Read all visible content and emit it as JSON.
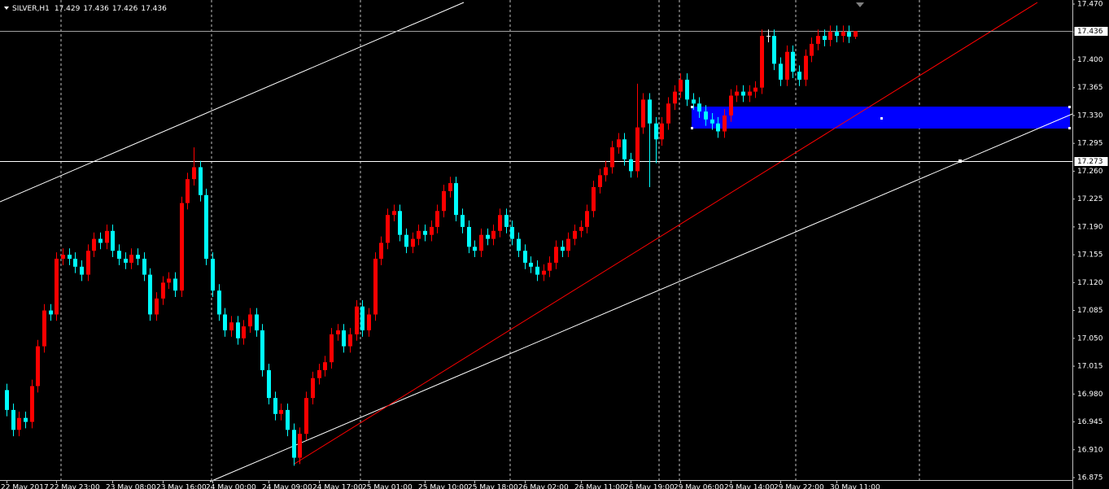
{
  "chart_data": {
    "type": "candlestick",
    "symbol": "SILVER,H1",
    "categories": [
      "22 May 2017",
      null,
      null,
      null,
      null,
      null,
      null,
      null,
      "22 May 23:00",
      null,
      null,
      null,
      null,
      null,
      null,
      null,
      null,
      "23 May 08:00",
      null,
      null,
      null,
      null,
      null,
      null,
      null,
      "23 May 16:00",
      null,
      null,
      null,
      null,
      null,
      null,
      null,
      "24 May 00:00",
      null,
      null,
      null,
      null,
      null,
      null,
      null,
      null,
      "24 May 09:00",
      null,
      null,
      null,
      null,
      null,
      null,
      null,
      "24 May 17:00",
      null,
      null,
      null,
      null,
      null,
      null,
      null,
      "25 May 01:00",
      null,
      null,
      null,
      null,
      null,
      null,
      null,
      null,
      "25 May 10:00",
      null,
      null,
      null,
      null,
      null,
      null,
      null,
      "25 May 18:00",
      null,
      null,
      null,
      null,
      null,
      null,
      null,
      "26 May 02:00",
      null,
      null,
      null,
      null,
      null,
      null,
      null,
      null,
      "26 May 11:00",
      null,
      null,
      null,
      null,
      null,
      null,
      null,
      "26 May 19:00",
      null,
      null,
      null,
      null,
      null,
      null,
      null,
      "29 May 06:00",
      null,
      null,
      null,
      null,
      null,
      null,
      null,
      "29 May 14:00",
      null,
      null,
      null,
      null,
      null,
      null,
      null,
      "29 May 22:00",
      null,
      null,
      null,
      null,
      null,
      null,
      null,
      null,
      "30 May 11:00",
      null,
      null,
      null
    ],
    "open": [
      16.985,
      16.96,
      16.935,
      16.95,
      16.945,
      16.99,
      17.04,
      17.085,
      17.08,
      17.15,
      17.155,
      17.15,
      17.14,
      17.13,
      17.16,
      17.175,
      17.17,
      17.185,
      17.16,
      17.15,
      17.145,
      17.155,
      17.15,
      17.13,
      17.08,
      17.1,
      17.12,
      17.125,
      17.11,
      17.22,
      17.25,
      17.265,
      17.23,
      17.15,
      17.11,
      17.08,
      17.06,
      17.07,
      17.05,
      17.065,
      17.08,
      17.06,
      17.01,
      16.975,
      16.955,
      16.96,
      16.935,
      16.9,
      16.93,
      16.975,
      17.0,
      17.01,
      17.02,
      17.055,
      17.06,
      17.04,
      17.055,
      17.09,
      17.06,
      17.08,
      17.15,
      17.17,
      17.205,
      17.21,
      17.18,
      17.165,
      17.175,
      17.185,
      17.18,
      17.19,
      17.21,
      17.235,
      17.245,
      17.205,
      17.19,
      17.165,
      17.16,
      17.18,
      17.175,
      17.185,
      17.205,
      17.19,
      17.175,
      17.16,
      17.145,
      17.14,
      17.13,
      17.135,
      17.145,
      17.165,
      17.16,
      17.175,
      17.185,
      17.19,
      17.21,
      17.24,
      17.255,
      17.265,
      17.29,
      17.3,
      17.275,
      17.26,
      17.315,
      17.35,
      17.32,
      17.3,
      17.32,
      17.345,
      17.36,
      17.375,
      17.35,
      17.345,
      17.335,
      17.325,
      17.32,
      17.31,
      17.33,
      17.355,
      17.36,
      17.355,
      17.36,
      17.365,
      17.43,
      17.43,
      17.395,
      17.375,
      17.41,
      17.385,
      17.375,
      17.405,
      17.42,
      17.43,
      17.425,
      17.435,
      17.43,
      17.435,
      17.429
    ],
    "high": [
      16.993,
      16.968,
      16.958,
      16.958,
      16.998,
      17.048,
      17.093,
      17.093,
      17.158,
      17.163,
      17.163,
      17.158,
      17.148,
      17.168,
      17.183,
      17.183,
      17.193,
      17.193,
      17.168,
      17.158,
      17.163,
      17.163,
      17.158,
      17.138,
      17.108,
      17.128,
      17.133,
      17.133,
      17.228,
      17.258,
      17.29,
      17.273,
      17.238,
      17.158,
      17.118,
      17.088,
      17.078,
      17.078,
      17.073,
      17.088,
      17.088,
      17.068,
      17.018,
      16.983,
      16.968,
      16.968,
      16.943,
      16.938,
      16.983,
      17.008,
      17.018,
      17.028,
      17.063,
      17.068,
      17.068,
      17.063,
      17.098,
      17.098,
      17.088,
      17.158,
      17.178,
      17.213,
      17.218,
      17.218,
      17.188,
      17.183,
      17.193,
      17.193,
      17.198,
      17.218,
      17.243,
      17.253,
      17.253,
      17.213,
      17.198,
      17.173,
      17.188,
      17.188,
      17.193,
      17.213,
      17.213,
      17.198,
      17.183,
      17.168,
      17.153,
      17.148,
      17.143,
      17.153,
      17.173,
      17.173,
      17.183,
      17.193,
      17.198,
      17.218,
      17.248,
      17.263,
      17.273,
      17.298,
      17.308,
      17.308,
      17.283,
      17.37,
      17.358,
      17.358,
      17.328,
      17.328,
      17.353,
      17.368,
      17.383,
      17.383,
      17.358,
      17.353,
      17.343,
      17.333,
      17.328,
      17.338,
      17.363,
      17.368,
      17.368,
      17.368,
      17.373,
      17.438,
      17.438,
      17.438,
      17.403,
      17.418,
      17.418,
      17.393,
      17.413,
      17.428,
      17.438,
      17.438,
      17.443,
      17.443,
      17.443,
      17.443,
      17.436
    ],
    "low": [
      16.952,
      16.927,
      16.927,
      16.937,
      16.937,
      16.982,
      17.032,
      17.072,
      17.072,
      17.142,
      17.142,
      17.132,
      17.122,
      17.122,
      17.152,
      17.162,
      17.162,
      17.152,
      17.142,
      17.137,
      17.137,
      17.142,
      17.122,
      17.072,
      17.072,
      17.092,
      17.112,
      17.102,
      17.102,
      17.212,
      17.242,
      17.222,
      17.142,
      17.102,
      17.072,
      17.052,
      17.052,
      17.042,
      17.042,
      17.057,
      17.052,
      17.002,
      16.967,
      16.947,
      16.947,
      16.927,
      16.89,
      16.892,
      16.922,
      16.967,
      16.992,
      17.002,
      17.012,
      17.047,
      17.032,
      17.032,
      17.047,
      17.052,
      17.052,
      17.072,
      17.142,
      17.162,
      17.197,
      17.172,
      17.157,
      17.157,
      17.167,
      17.172,
      17.172,
      17.182,
      17.202,
      17.227,
      17.197,
      17.182,
      17.157,
      17.152,
      17.152,
      17.167,
      17.167,
      17.177,
      17.182,
      17.167,
      17.152,
      17.137,
      17.132,
      17.122,
      17.122,
      17.127,
      17.137,
      17.152,
      17.152,
      17.167,
      17.177,
      17.182,
      17.202,
      17.232,
      17.247,
      17.257,
      17.282,
      17.267,
      17.252,
      17.252,
      17.307,
      17.24,
      17.27,
      17.292,
      17.312,
      17.337,
      17.352,
      17.342,
      17.337,
      17.327,
      17.317,
      17.312,
      17.302,
      17.302,
      17.322,
      17.347,
      17.347,
      17.347,
      17.352,
      17.357,
      17.422,
      17.387,
      17.367,
      17.367,
      17.377,
      17.367,
      17.367,
      17.397,
      17.412,
      17.417,
      17.417,
      17.422,
      17.422,
      17.421,
      17.426
    ],
    "close": [
      16.96,
      16.935,
      16.95,
      16.945,
      16.99,
      17.04,
      17.085,
      17.08,
      17.15,
      17.155,
      17.15,
      17.14,
      17.13,
      17.16,
      17.175,
      17.17,
      17.185,
      17.16,
      17.15,
      17.145,
      17.155,
      17.15,
      17.13,
      17.08,
      17.1,
      17.12,
      17.125,
      17.11,
      17.22,
      17.25,
      17.265,
      17.23,
      17.15,
      17.11,
      17.08,
      17.06,
      17.07,
      17.05,
      17.065,
      17.08,
      17.06,
      17.01,
      16.975,
      16.955,
      16.96,
      16.935,
      16.9,
      16.93,
      16.975,
      17.0,
      17.01,
      17.02,
      17.055,
      17.06,
      17.04,
      17.055,
      17.09,
      17.06,
      17.08,
      17.15,
      17.17,
      17.205,
      17.21,
      17.18,
      17.165,
      17.175,
      17.185,
      17.18,
      17.19,
      17.21,
      17.235,
      17.245,
      17.205,
      17.19,
      17.165,
      17.16,
      17.18,
      17.175,
      17.185,
      17.205,
      17.19,
      17.175,
      17.16,
      17.145,
      17.14,
      17.13,
      17.135,
      17.145,
      17.165,
      17.16,
      17.175,
      17.185,
      17.19,
      17.21,
      17.24,
      17.255,
      17.265,
      17.29,
      17.3,
      17.275,
      17.26,
      17.315,
      17.35,
      17.32,
      17.3,
      17.32,
      17.345,
      17.36,
      17.375,
      17.35,
      17.345,
      17.335,
      17.325,
      17.32,
      17.31,
      17.33,
      17.355,
      17.36,
      17.355,
      17.36,
      17.365,
      17.43,
      17.43,
      17.395,
      17.375,
      17.41,
      17.385,
      17.375,
      17.405,
      17.42,
      17.43,
      17.425,
      17.435,
      17.43,
      17.435,
      17.429,
      17.436
    ],
    "up_color": "#ff0000",
    "down_color": "#00ffff",
    "ylim": [
      16.875,
      17.47
    ],
    "yticks": [
      {
        "value": 17.47,
        "label": "17.470"
      },
      17.435,
      {
        "value": 17.4,
        "label": "17.400"
      },
      17.365,
      {
        "value": 17.33,
        "label": "17.330"
      },
      17.295,
      {
        "value": 17.26,
        "label": "17.260"
      },
      17.225,
      {
        "value": 17.19,
        "label": "17.190"
      },
      17.155,
      {
        "value": 17.12,
        "label": "17.120"
      },
      17.085,
      {
        "value": 17.05,
        "label": "17.050"
      },
      17.015,
      {
        "value": 16.98,
        "label": "16.980"
      },
      16.945,
      {
        "value": 16.91,
        "label": "16.910"
      },
      16.875
    ],
    "price_lines": [
      17.436,
      17.273
    ],
    "grid": true
  }
}
